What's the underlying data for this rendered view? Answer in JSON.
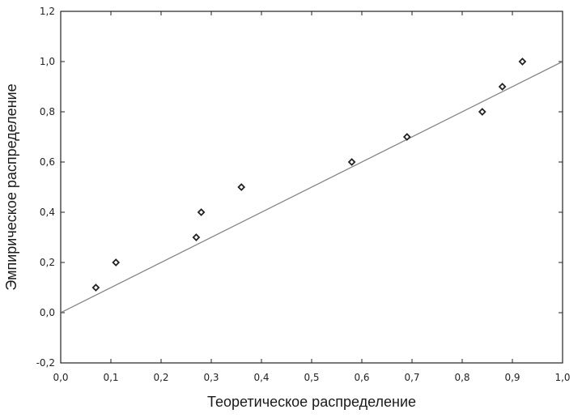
{
  "chart_data": {
    "type": "scatter",
    "title": "",
    "xlabel": "Теоретическое распределение",
    "ylabel": "Эмпирическое распределение",
    "xlim": [
      0.0,
      1.0
    ],
    "ylim": [
      -0.2,
      1.2
    ],
    "grid": false,
    "x_ticks": [
      {
        "value": 0.0,
        "label": "0,0"
      },
      {
        "value": 0.1,
        "label": "0,1"
      },
      {
        "value": 0.2,
        "label": "0,2"
      },
      {
        "value": 0.3,
        "label": "0,3"
      },
      {
        "value": 0.4,
        "label": "0,4"
      },
      {
        "value": 0.5,
        "label": "0,5"
      },
      {
        "value": 0.6,
        "label": "0,6"
      },
      {
        "value": 0.7,
        "label": "0,7"
      },
      {
        "value": 0.8,
        "label": "0,8"
      },
      {
        "value": 0.9,
        "label": "0,9"
      },
      {
        "value": 1.0,
        "label": "1,0"
      }
    ],
    "y_ticks": [
      {
        "value": -0.2,
        "label": "-0,2"
      },
      {
        "value": 0.0,
        "label": "0,0"
      },
      {
        "value": 0.2,
        "label": "0,2"
      },
      {
        "value": 0.4,
        "label": "0,4"
      },
      {
        "value": 0.6,
        "label": "0,6"
      },
      {
        "value": 0.8,
        "label": "0,8"
      },
      {
        "value": 1.0,
        "label": "1,0"
      },
      {
        "value": 1.2,
        "label": "1,2"
      }
    ],
    "series": [
      {
        "marker": "diamond",
        "points": [
          {
            "x": 0.07,
            "y": 0.1
          },
          {
            "x": 0.11,
            "y": 0.2
          },
          {
            "x": 0.27,
            "y": 0.3
          },
          {
            "x": 0.28,
            "y": 0.4
          },
          {
            "x": 0.36,
            "y": 0.5
          },
          {
            "x": 0.58,
            "y": 0.6
          },
          {
            "x": 0.69,
            "y": 0.7
          },
          {
            "x": 0.84,
            "y": 0.8
          },
          {
            "x": 0.88,
            "y": 0.9
          },
          {
            "x": 0.92,
            "y": 1.0
          }
        ]
      }
    ],
    "reference_line": {
      "from": [
        0.0,
        0.0
      ],
      "to": [
        1.0,
        1.0
      ],
      "color": "#888888"
    },
    "colors": {
      "marker": "#222222",
      "axis": "#222222"
    }
  }
}
